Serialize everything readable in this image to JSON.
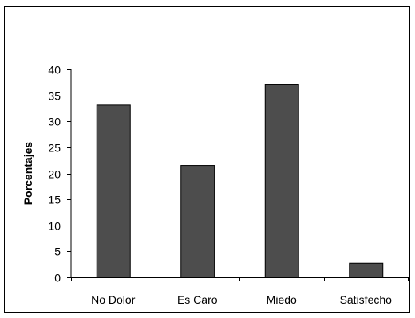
{
  "chart_data": {
    "type": "bar",
    "categories": [
      "No Dolor",
      "Es Caro",
      "Miedo",
      "Satisfecho"
    ],
    "values": [
      33.2,
      21.6,
      37.1,
      2.8
    ],
    "ylabel": "Porcentajes",
    "xlabel": "",
    "ylim": [
      0,
      40
    ],
    "yticks": [
      0,
      5,
      10,
      15,
      20,
      25,
      30,
      35,
      40
    ],
    "grid": false,
    "legend": "none",
    "bar_color": "#4d4d4d",
    "bar_edge_color": "#000000"
  }
}
